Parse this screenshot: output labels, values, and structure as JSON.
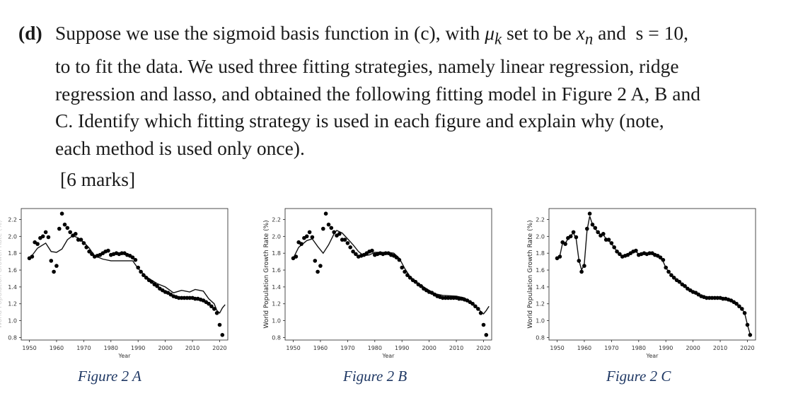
{
  "question": {
    "label": "(d)",
    "line1_pre": "Suppose we use the sigmoid basis function in (c), with ",
    "mu": "μ",
    "mu_sub": "k",
    "line1_mid": " set to be ",
    "x": "x",
    "x_sub": "n",
    "line1_post": " and  s = 10,",
    "line2": "to to fit the data. We used three fitting strategies, namely linear regression, ridge",
    "line3": "regression and lasso, and obtained the following fitting model in Figure 2 A, B and",
    "line4": "C. Identify which fitting strategy is used in each figure and explain why (note,",
    "line5": "each method is used only once).",
    "marks": "[6 marks]"
  },
  "axes": {
    "xlabel": "Year",
    "ylabel": "World Population Growth Rate (%)",
    "xticks": [
      1950,
      1960,
      1970,
      1980,
      1990,
      2000,
      2010,
      2020
    ],
    "yticks": [
      "0.8",
      "1.0",
      "1.2",
      "1.4",
      "1.6",
      "1.8",
      "2.0",
      "2.2"
    ],
    "xlim": [
      1947,
      2023
    ],
    "ylim": [
      0.77,
      2.33
    ]
  },
  "captions": [
    "Figure 2 A",
    "Figure 2 B",
    "Figure 2 C"
  ],
  "chart_data": [
    {
      "type": "scatter",
      "title": "",
      "xlabel": "Year",
      "ylabel": "World Population Growth Rate (%)",
      "xlim": [
        1947,
        2023
      ],
      "ylim": [
        0.77,
        2.33
      ],
      "x": [
        1950,
        1951,
        1952,
        1953,
        1954,
        1955,
        1956,
        1957,
        1958,
        1959,
        1960,
        1961,
        1962,
        1963,
        1964,
        1965,
        1966,
        1967,
        1968,
        1969,
        1970,
        1971,
        1972,
        1973,
        1974,
        1975,
        1976,
        1977,
        1978,
        1979,
        1980,
        1981,
        1982,
        1983,
        1984,
        1985,
        1986,
        1987,
        1988,
        1989,
        1990,
        1991,
        1992,
        1993,
        1994,
        1995,
        1996,
        1997,
        1998,
        1999,
        2000,
        2001,
        2002,
        2003,
        2004,
        2005,
        2006,
        2007,
        2008,
        2009,
        2010,
        2011,
        2012,
        2013,
        2014,
        2015,
        2016,
        2017,
        2018,
        2019,
        2020,
        2021
      ],
      "y": [
        1.74,
        1.76,
        1.93,
        1.91,
        1.98,
        2.0,
        2.05,
        1.99,
        1.71,
        1.58,
        1.65,
        2.09,
        2.27,
        2.14,
        2.1,
        2.05,
        2.01,
        2.03,
        1.96,
        1.96,
        1.92,
        1.87,
        1.82,
        1.79,
        1.76,
        1.77,
        1.78,
        1.8,
        1.82,
        1.83,
        1.78,
        1.79,
        1.8,
        1.79,
        1.8,
        1.8,
        1.78,
        1.77,
        1.75,
        1.72,
        1.63,
        1.58,
        1.54,
        1.51,
        1.48,
        1.46,
        1.43,
        1.41,
        1.38,
        1.36,
        1.34,
        1.33,
        1.31,
        1.29,
        1.28,
        1.27,
        1.27,
        1.27,
        1.27,
        1.27,
        1.27,
        1.26,
        1.26,
        1.25,
        1.24,
        1.22,
        1.2,
        1.17,
        1.14,
        1.09,
        0.95,
        0.83
      ],
      "fit": [
        [
          1950,
          1.73
        ],
        [
          1953,
          1.86
        ],
        [
          1956,
          1.92
        ],
        [
          1958,
          1.82
        ],
        [
          1960,
          1.81
        ],
        [
          1962,
          1.85
        ],
        [
          1964,
          1.96
        ],
        [
          1966,
          2.01
        ],
        [
          1968,
          1.98
        ],
        [
          1970,
          1.93
        ],
        [
          1972,
          1.86
        ],
        [
          1974,
          1.77
        ],
        [
          1977,
          1.73
        ],
        [
          1980,
          1.71
        ],
        [
          1985,
          1.71
        ],
        [
          1988,
          1.71
        ],
        [
          1990,
          1.62
        ],
        [
          1993,
          1.52
        ],
        [
          1997,
          1.44
        ],
        [
          2000,
          1.4
        ],
        [
          2003,
          1.33
        ],
        [
          2006,
          1.36
        ],
        [
          2009,
          1.34
        ],
        [
          2011,
          1.37
        ],
        [
          2014,
          1.35
        ],
        [
          2016,
          1.26
        ],
        [
          2018,
          1.2
        ],
        [
          2019,
          1.12
        ],
        [
          2020,
          1.09
        ],
        [
          2021,
          1.15
        ],
        [
          2022,
          1.19
        ]
      ]
    },
    {
      "type": "scatter",
      "title": "",
      "xlabel": "Year",
      "ylabel": "World Population Growth Rate (%)",
      "xlim": [
        1947,
        2023
      ],
      "ylim": [
        0.77,
        2.33
      ],
      "x": [
        1950,
        1951,
        1952,
        1953,
        1954,
        1955,
        1956,
        1957,
        1958,
        1959,
        1960,
        1961,
        1962,
        1963,
        1964,
        1965,
        1966,
        1967,
        1968,
        1969,
        1970,
        1971,
        1972,
        1973,
        1974,
        1975,
        1976,
        1977,
        1978,
        1979,
        1980,
        1981,
        1982,
        1983,
        1984,
        1985,
        1986,
        1987,
        1988,
        1989,
        1990,
        1991,
        1992,
        1993,
        1994,
        1995,
        1996,
        1997,
        1998,
        1999,
        2000,
        2001,
        2002,
        2003,
        2004,
        2005,
        2006,
        2007,
        2008,
        2009,
        2010,
        2011,
        2012,
        2013,
        2014,
        2015,
        2016,
        2017,
        2018,
        2019,
        2020,
        2021
      ],
      "y": [
        1.74,
        1.76,
        1.93,
        1.91,
        1.98,
        2.0,
        2.05,
        1.99,
        1.71,
        1.58,
        1.65,
        2.09,
        2.27,
        2.14,
        2.1,
        2.05,
        2.01,
        2.03,
        1.96,
        1.96,
        1.92,
        1.87,
        1.82,
        1.79,
        1.76,
        1.77,
        1.78,
        1.8,
        1.82,
        1.83,
        1.78,
        1.79,
        1.8,
        1.79,
        1.8,
        1.8,
        1.78,
        1.77,
        1.75,
        1.72,
        1.63,
        1.58,
        1.54,
        1.51,
        1.48,
        1.46,
        1.43,
        1.41,
        1.38,
        1.36,
        1.34,
        1.33,
        1.31,
        1.29,
        1.28,
        1.27,
        1.27,
        1.27,
        1.27,
        1.27,
        1.27,
        1.26,
        1.26,
        1.25,
        1.24,
        1.22,
        1.2,
        1.17,
        1.14,
        1.09,
        0.95,
        0.83
      ],
      "fit": [
        [
          1950,
          1.74
        ],
        [
          1952,
          1.87
        ],
        [
          1955,
          1.95
        ],
        [
          1957,
          1.97
        ],
        [
          1959,
          1.88
        ],
        [
          1961,
          1.8
        ],
        [
          1963,
          1.9
        ],
        [
          1965,
          2.03
        ],
        [
          1966,
          2.07
        ],
        [
          1968,
          2.04
        ],
        [
          1970,
          1.97
        ],
        [
          1972,
          1.9
        ],
        [
          1974,
          1.82
        ],
        [
          1976,
          1.77
        ],
        [
          1978,
          1.78
        ],
        [
          1980,
          1.81
        ],
        [
          1982,
          1.81
        ],
        [
          1985,
          1.81
        ],
        [
          1987,
          1.8
        ],
        [
          1989,
          1.74
        ],
        [
          1991,
          1.62
        ],
        [
          1993,
          1.52
        ],
        [
          1996,
          1.44
        ],
        [
          1999,
          1.38
        ],
        [
          2002,
          1.32
        ],
        [
          2005,
          1.3
        ],
        [
          2010,
          1.29
        ],
        [
          2013,
          1.27
        ],
        [
          2015,
          1.22
        ],
        [
          2017,
          1.17
        ],
        [
          2019,
          1.11
        ],
        [
          2020,
          1.08
        ],
        [
          2021,
          1.12
        ],
        [
          2022,
          1.17
        ]
      ]
    },
    {
      "type": "scatter",
      "title": "",
      "xlabel": "Year",
      "ylabel": "World Population Growth Rate (%)",
      "xlim": [
        1947,
        2023
      ],
      "ylim": [
        0.77,
        2.33
      ],
      "x": [
        1950,
        1951,
        1952,
        1953,
        1954,
        1955,
        1956,
        1957,
        1958,
        1959,
        1960,
        1961,
        1962,
        1963,
        1964,
        1965,
        1966,
        1967,
        1968,
        1969,
        1970,
        1971,
        1972,
        1973,
        1974,
        1975,
        1976,
        1977,
        1978,
        1979,
        1980,
        1981,
        1982,
        1983,
        1984,
        1985,
        1986,
        1987,
        1988,
        1989,
        1990,
        1991,
        1992,
        1993,
        1994,
        1995,
        1996,
        1997,
        1998,
        1999,
        2000,
        2001,
        2002,
        2003,
        2004,
        2005,
        2006,
        2007,
        2008,
        2009,
        2010,
        2011,
        2012,
        2013,
        2014,
        2015,
        2016,
        2017,
        2018,
        2019,
        2020,
        2021
      ],
      "y": [
        1.74,
        1.76,
        1.93,
        1.91,
        1.98,
        2.0,
        2.05,
        1.99,
        1.71,
        1.58,
        1.65,
        2.09,
        2.27,
        2.14,
        2.1,
        2.05,
        2.01,
        2.03,
        1.96,
        1.96,
        1.92,
        1.87,
        1.82,
        1.79,
        1.76,
        1.77,
        1.78,
        1.8,
        1.82,
        1.83,
        1.78,
        1.79,
        1.8,
        1.79,
        1.8,
        1.8,
        1.78,
        1.77,
        1.75,
        1.72,
        1.63,
        1.58,
        1.54,
        1.51,
        1.48,
        1.46,
        1.43,
        1.41,
        1.38,
        1.36,
        1.34,
        1.33,
        1.31,
        1.29,
        1.28,
        1.27,
        1.27,
        1.27,
        1.27,
        1.27,
        1.27,
        1.26,
        1.26,
        1.25,
        1.24,
        1.22,
        1.2,
        1.17,
        1.14,
        1.09,
        0.95,
        0.83
      ],
      "fit": [
        [
          1950,
          1.74
        ],
        [
          1951,
          1.77
        ],
        [
          1952,
          1.92
        ],
        [
          1953,
          1.92
        ],
        [
          1954,
          1.97
        ],
        [
          1955,
          2.01
        ],
        [
          1956,
          2.04
        ],
        [
          1957,
          1.97
        ],
        [
          1958,
          1.72
        ],
        [
          1959,
          1.6
        ],
        [
          1960,
          1.67
        ],
        [
          1961,
          2.07
        ],
        [
          1962,
          2.24
        ],
        [
          1963,
          2.14
        ],
        [
          1964,
          2.09
        ],
        [
          1965,
          2.05
        ],
        [
          1966,
          2.02
        ],
        [
          1967,
          2.02
        ],
        [
          1968,
          1.97
        ],
        [
          1969,
          1.95
        ],
        [
          1970,
          1.91
        ],
        [
          1971,
          1.87
        ],
        [
          1972,
          1.82
        ],
        [
          1973,
          1.79
        ],
        [
          1974,
          1.77
        ],
        [
          1975,
          1.77
        ],
        [
          1976,
          1.78
        ],
        [
          1977,
          1.8
        ],
        [
          1978,
          1.82
        ],
        [
          1979,
          1.82
        ],
        [
          1980,
          1.79
        ],
        [
          1981,
          1.79
        ],
        [
          1982,
          1.79
        ],
        [
          1983,
          1.79
        ],
        [
          1984,
          1.8
        ],
        [
          1985,
          1.79
        ],
        [
          1986,
          1.78
        ],
        [
          1987,
          1.77
        ],
        [
          1988,
          1.74
        ],
        [
          1989,
          1.7
        ],
        [
          1990,
          1.63
        ],
        [
          1991,
          1.58
        ],
        [
          1992,
          1.54
        ],
        [
          1993,
          1.51
        ],
        [
          1994,
          1.48
        ],
        [
          1995,
          1.46
        ],
        [
          1996,
          1.43
        ],
        [
          1997,
          1.41
        ],
        [
          1998,
          1.38
        ],
        [
          1999,
          1.36
        ],
        [
          2000,
          1.34
        ],
        [
          2001,
          1.33
        ],
        [
          2002,
          1.31
        ],
        [
          2003,
          1.29
        ],
        [
          2004,
          1.28
        ],
        [
          2005,
          1.27
        ],
        [
          2006,
          1.27
        ],
        [
          2007,
          1.27
        ],
        [
          2008,
          1.27
        ],
        [
          2009,
          1.27
        ],
        [
          2010,
          1.27
        ],
        [
          2011,
          1.26
        ],
        [
          2012,
          1.26
        ],
        [
          2013,
          1.25
        ],
        [
          2014,
          1.24
        ],
        [
          2015,
          1.22
        ],
        [
          2016,
          1.2
        ],
        [
          2017,
          1.17
        ],
        [
          2018,
          1.14
        ],
        [
          2019,
          1.09
        ],
        [
          2020,
          0.95
        ],
        [
          2021,
          0.84
        ]
      ]
    }
  ]
}
